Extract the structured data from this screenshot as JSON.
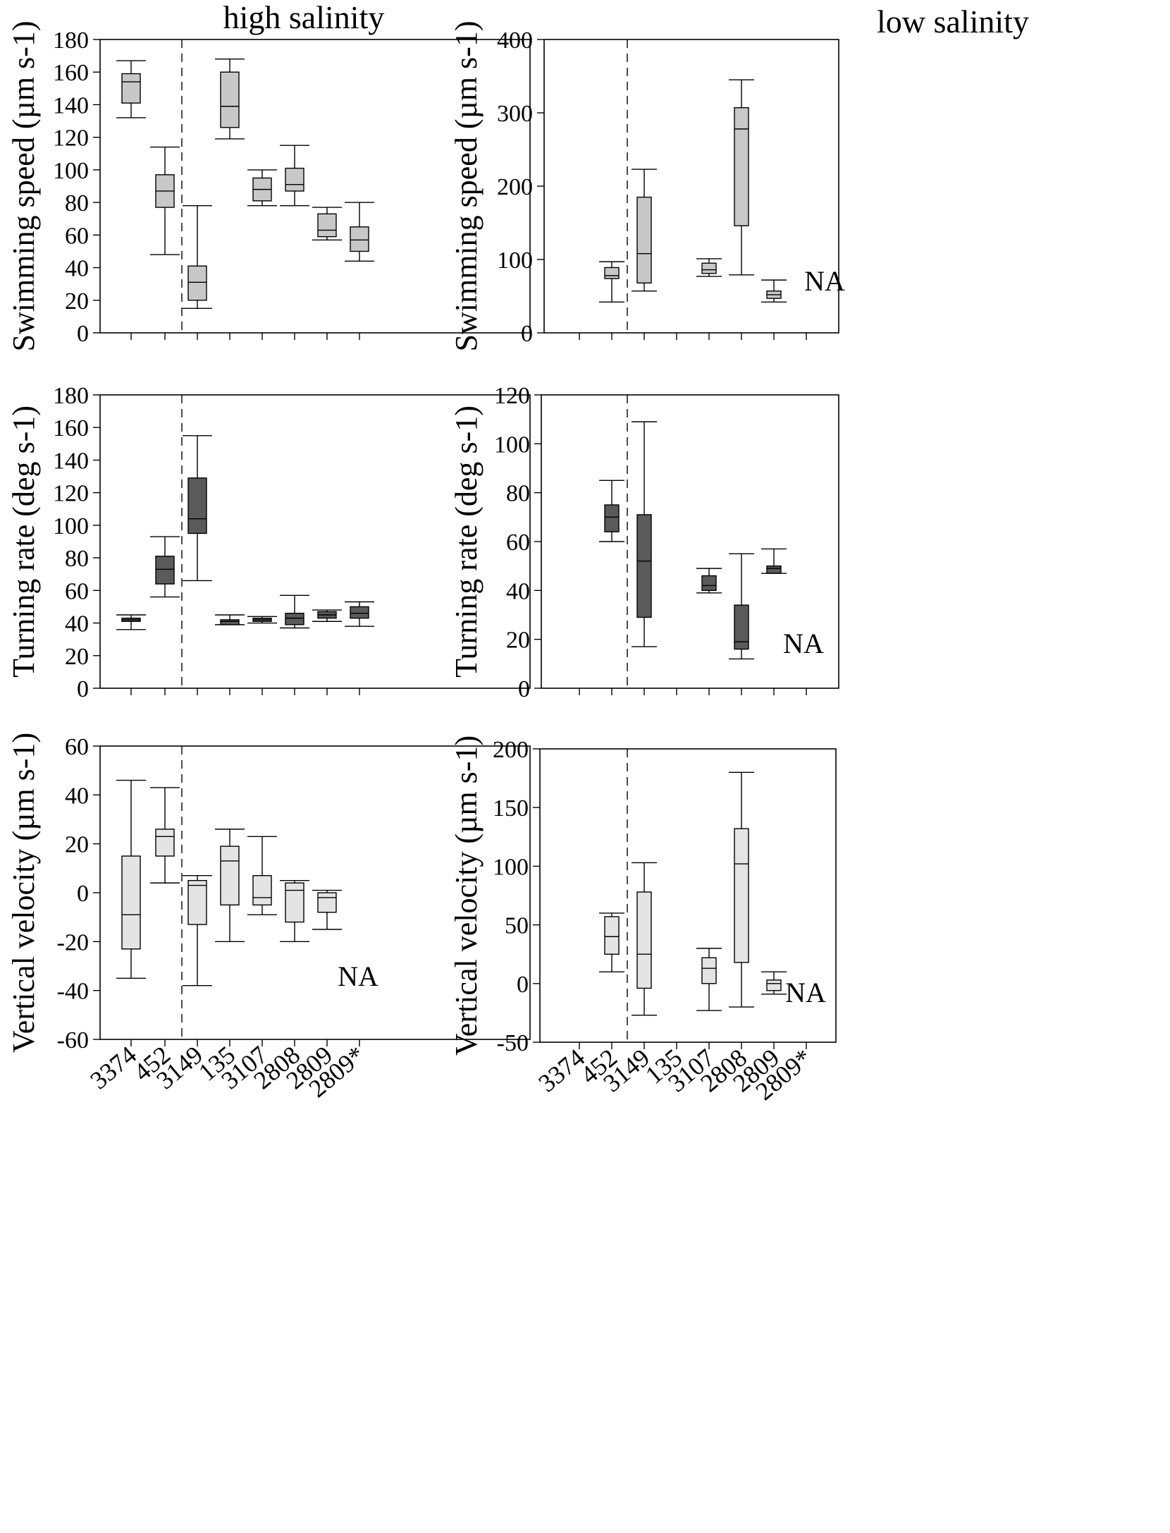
{
  "colors": {
    "light_box": "#c8c8c8",
    "dark_box": "#5a5a5a",
    "lighter_box": "#e4e4e4",
    "stroke": "#000000"
  },
  "column_titles": [
    "high salinity",
    "low salinity"
  ],
  "row_ylabels": [
    "Swimming speed (µm s-1)",
    "Turning rate (deg s-1)",
    "Vertical velocity (µm s-1)"
  ],
  "categories": [
    "3374",
    "452",
    "3149",
    "135",
    "3107",
    "2808",
    "2809",
    "2809*"
  ],
  "chart_data": [
    {
      "type": "box",
      "title": "high salinity",
      "ylabel": "Swimming speed (µm s-1)",
      "categories": [
        "3374",
        "452",
        "3149",
        "135",
        "3107",
        "2808",
        "2809",
        "2809*"
      ],
      "ylim": [
        0,
        180
      ],
      "yticks": [
        0,
        20,
        40,
        60,
        80,
        100,
        120,
        140,
        160,
        180
      ],
      "divider_after_index": 1,
      "box_fill": "light",
      "na_label": "",
      "boxes": [
        {
          "category": "3374",
          "min": 132,
          "q1": 141,
          "median": 154,
          "q3": 159,
          "max": 167
        },
        {
          "category": "452",
          "min": 48,
          "q1": 77,
          "median": 87,
          "q3": 97,
          "max": 114
        },
        {
          "category": "3149",
          "min": 15,
          "q1": 20,
          "median": 31,
          "q3": 41,
          "max": 78
        },
        {
          "category": "135",
          "min": 119,
          "q1": 126,
          "median": 139,
          "q3": 160,
          "max": 168
        },
        {
          "category": "3107",
          "min": 78,
          "q1": 81,
          "median": 88,
          "q3": 95,
          "max": 100
        },
        {
          "category": "2808",
          "min": 78,
          "q1": 87,
          "median": 91,
          "q3": 101,
          "max": 115
        },
        {
          "category": "2809",
          "min": 57,
          "q1": 59,
          "median": 63,
          "q3": 73,
          "max": 77
        },
        {
          "category": "2809*",
          "min": 44,
          "q1": 50,
          "median": 57,
          "q3": 65,
          "max": 80
        }
      ]
    },
    {
      "type": "box",
      "title": "low salinity",
      "ylabel": "Swimming speed (µm s-1)",
      "categories": [
        "3374",
        "452",
        "3149",
        "135",
        "3107",
        "2808",
        "2809",
        "2809*"
      ],
      "ylim": [
        0,
        400
      ],
      "yticks": [
        0,
        100,
        200,
        300,
        400
      ],
      "divider_after_index": 1,
      "box_fill": "light",
      "na_label": "NA",
      "boxes": [
        {
          "category": "452",
          "min": 42,
          "q1": 74,
          "median": 78,
          "q3": 89,
          "max": 97
        },
        {
          "category": "3149",
          "min": 57,
          "q1": 68,
          "median": 108,
          "q3": 185,
          "max": 223
        },
        {
          "category": "3107",
          "min": 77,
          "q1": 81,
          "median": 86,
          "q3": 95,
          "max": 101
        },
        {
          "category": "2808",
          "min": 79,
          "q1": 146,
          "median": 278,
          "q3": 307,
          "max": 345
        },
        {
          "category": "2809",
          "min": 42,
          "q1": 47,
          "median": 52,
          "q3": 57,
          "max": 72
        }
      ]
    },
    {
      "type": "box",
      "title": "",
      "ylabel": "Turning rate (deg s-1)",
      "categories": [
        "3374",
        "452",
        "3149",
        "135",
        "3107",
        "2808",
        "2809",
        "2809*"
      ],
      "ylim": [
        0,
        180
      ],
      "yticks": [
        0,
        20,
        40,
        60,
        80,
        100,
        120,
        140,
        160,
        180
      ],
      "divider_after_index": 1,
      "box_fill": "dark",
      "na_label": "",
      "boxes": [
        {
          "category": "3374",
          "min": 36,
          "q1": 41,
          "median": 42,
          "q3": 43,
          "max": 45
        },
        {
          "category": "452",
          "min": 56,
          "q1": 64,
          "median": 73,
          "q3": 81,
          "max": 93
        },
        {
          "category": "3149",
          "min": 66,
          "q1": 95,
          "median": 104,
          "q3": 129,
          "max": 155
        },
        {
          "category": "135",
          "min": 39,
          "q1": 39,
          "median": 41,
          "q3": 42,
          "max": 45
        },
        {
          "category": "3107",
          "min": 40,
          "q1": 41,
          "median": 42,
          "q3": 43,
          "max": 44
        },
        {
          "category": "2808",
          "min": 37,
          "q1": 39,
          "median": 43,
          "q3": 46,
          "max": 57
        },
        {
          "category": "2809",
          "min": 41,
          "q1": 43,
          "median": 45,
          "q3": 47,
          "max": 48
        },
        {
          "category": "2809*",
          "min": 38,
          "q1": 43,
          "median": 46,
          "q3": 50,
          "max": 53
        }
      ]
    },
    {
      "type": "box",
      "title": "",
      "ylabel": "Turning rate (deg s-1)",
      "categories": [
        "3374",
        "452",
        "3149",
        "135",
        "3107",
        "2808",
        "2809",
        "2809*"
      ],
      "ylim": [
        0,
        120
      ],
      "yticks": [
        0,
        20,
        40,
        60,
        80,
        100,
        120
      ],
      "divider_after_index": 1,
      "box_fill": "dark",
      "na_label": "NA",
      "boxes": [
        {
          "category": "452",
          "min": 60,
          "q1": 64,
          "median": 70,
          "q3": 75,
          "max": 85
        },
        {
          "category": "3149",
          "min": 17,
          "q1": 29,
          "median": 52,
          "q3": 71,
          "max": 109
        },
        {
          "category": "3107",
          "min": 39,
          "q1": 40,
          "median": 42,
          "q3": 46,
          "max": 49
        },
        {
          "category": "2808",
          "min": 12,
          "q1": 16,
          "median": 19,
          "q3": 34,
          "max": 55
        },
        {
          "category": "2809",
          "min": 47,
          "q1": 47,
          "median": 49,
          "q3": 50,
          "max": 57
        }
      ]
    },
    {
      "type": "box",
      "title": "",
      "ylabel": "Vertical velocity (µm s-1)",
      "categories": [
        "3374",
        "452",
        "3149",
        "135",
        "3107",
        "2808",
        "2809",
        "2809*"
      ],
      "ylim": [
        -60,
        60
      ],
      "yticks": [
        -60,
        -40,
        -20,
        0,
        20,
        40,
        60
      ],
      "divider_after_index": 1,
      "box_fill": "lighter",
      "na_label": "NA",
      "boxes": [
        {
          "category": "3374",
          "min": -35,
          "q1": -23,
          "median": -9,
          "q3": 15,
          "max": 46
        },
        {
          "category": "452",
          "min": 4,
          "q1": 15,
          "median": 23,
          "q3": 26,
          "max": 43
        },
        {
          "category": "3149",
          "min": -38,
          "q1": -13,
          "median": 3,
          "q3": 5,
          "max": 7
        },
        {
          "category": "135",
          "min": -20,
          "q1": -5,
          "median": 13,
          "q3": 19,
          "max": 26
        },
        {
          "category": "3107",
          "min": -9,
          "q1": -5,
          "median": -2,
          "q3": 7,
          "max": 23
        },
        {
          "category": "2808",
          "min": -20,
          "q1": -12,
          "median": 1,
          "q3": 4,
          "max": 5
        },
        {
          "category": "2809",
          "min": -15,
          "q1": -8,
          "median": -2,
          "q3": 0,
          "max": 1
        }
      ]
    },
    {
      "type": "box",
      "title": "",
      "ylabel": "Vertical velocity (µm s-1)",
      "categories": [
        "3374",
        "452",
        "3149",
        "135",
        "3107",
        "2808",
        "2809",
        "2809*"
      ],
      "ylim": [
        -50,
        200
      ],
      "yticks": [
        -50,
        0,
        50,
        100,
        150,
        200
      ],
      "divider_after_index": 1,
      "box_fill": "lighter",
      "na_label": "NA",
      "boxes": [
        {
          "category": "452",
          "min": 10,
          "q1": 25,
          "median": 40,
          "q3": 57,
          "max": 60
        },
        {
          "category": "3149",
          "min": -27,
          "q1": -4,
          "median": 25,
          "q3": 78,
          "max": 103
        },
        {
          "category": "3107",
          "min": -23,
          "q1": 0,
          "median": 13,
          "q3": 22,
          "max": 30
        },
        {
          "category": "2808",
          "min": -20,
          "q1": 18,
          "median": 102,
          "q3": 132,
          "max": 180
        },
        {
          "category": "2809",
          "min": -9,
          "q1": -6,
          "median": 0,
          "q3": 3,
          "max": 10
        }
      ]
    }
  ]
}
